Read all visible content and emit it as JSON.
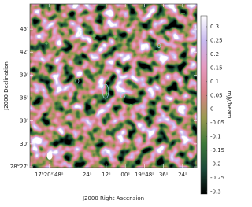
{
  "chart_data": {
    "type": "image",
    "xlabel": "J2000 Right Ascension",
    "ylabel": "J2000 Declination",
    "colorbar_label": "mJy/beam",
    "xlim": [
      120,
      15
    ],
    "xticks": [
      {
        "value": 108,
        "label": "17ʰ20ᵐ48ˢ"
      },
      {
        "value": 84,
        "label": "24ˢ"
      },
      {
        "value": 72,
        "label": "12ˢ"
      },
      {
        "value": 60,
        "label": "00ˢ"
      },
      {
        "value": 48,
        "label": "19ᵐ48ˢ"
      },
      {
        "value": 36,
        "label": "36ˢ"
      },
      {
        "value": 24,
        "label": "24ˢ"
      }
    ],
    "ylim": [
      26.9,
      48.3
    ],
    "yticks": [
      {
        "value": 45,
        "label": "45'"
      },
      {
        "value": 42,
        "label": "42'"
      },
      {
        "value": 39,
        "label": "39'"
      },
      {
        "value": 36,
        "label": "36'"
      },
      {
        "value": 33,
        "label": "33'"
      },
      {
        "value": 30,
        "label": "30'"
      },
      {
        "value": 27,
        "label": "28°27'"
      }
    ],
    "zlim": [
      -0.31,
      0.34
    ],
    "zticks": [
      0.3,
      0.25,
      0.2,
      0.15,
      0.1,
      0.05,
      0,
      -0.05,
      -0.1,
      -0.15,
      -0.2,
      -0.25,
      -0.3
    ],
    "colormap": [
      "#000000",
      "#1c4a3a",
      "#3d7a3a",
      "#9a9a50",
      "#d9808a",
      "#e69ac0",
      "#c8b8ef",
      "#ffffff"
    ]
  }
}
